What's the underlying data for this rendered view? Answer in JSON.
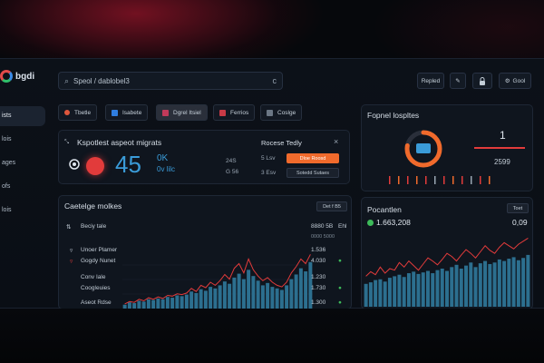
{
  "sidebar": {
    "logo_text": "bgdi",
    "items": [
      {
        "label": "ists"
      },
      {
        "label": "lois"
      },
      {
        "label": "ages"
      },
      {
        "label": "ofs"
      },
      {
        "label": "lois"
      }
    ]
  },
  "topbar": {
    "search_value": "Speol / dablobel3",
    "search_clear": "c",
    "btn_export": "Repled",
    "btn_edit_icon": "pencil-icon",
    "btn_lock_icon": "lock-icon",
    "btn_gool": "Gool"
  },
  "filters": [
    {
      "label": "Tbetle",
      "color": "#e0573d"
    },
    {
      "label": "Isabete",
      "color": "#2f7de0"
    },
    {
      "label": "Dgrel Itsiel",
      "color": "#c13a5a"
    },
    {
      "label": "Ferrios",
      "color": "#c83a46"
    },
    {
      "label": "Coslge",
      "color": "#6b7684"
    }
  ],
  "migrate_panel": {
    "title": "Kspotlest aspeot migrats",
    "big_value": "45",
    "unit_top": "0K",
    "unit_bottom": "0v lilc",
    "mid_top": "24S",
    "mid_bottom": "G 56",
    "right_title": "Rocese Tedly",
    "row1_label": "5 Lsv",
    "row1_button": "Dloe Roosd",
    "row2_label": "3 Esv",
    "row2_button": "Sotedd Sutaes",
    "close_glyph": "×",
    "collapse_glyph": "⤡"
  },
  "progress_panel": {
    "title": "Fopnel lospltes",
    "value_top": "1",
    "value_bottom": "2599",
    "ring_fraction": 0.78
  },
  "catalog_panel": {
    "title": "Caetelge molkes",
    "dropdown": "Det f B5",
    "header_label": "Beciy tale",
    "header_value": "8880 5B",
    "header_value2": "Ehl",
    "sub_value": "0000 5000",
    "rows": [
      {
        "label": "Unoer Plamer",
        "value": "1.536",
        "flag": ""
      },
      {
        "label": "Gogdy Nunet",
        "value": "4.030",
        "flag": "●"
      },
      {
        "label": "Conv Iale",
        "value": "1.230",
        "flag": ""
      },
      {
        "label": "Coogleuies",
        "value": "1.730",
        "flag": "●"
      },
      {
        "label": "Aseot Rdse",
        "value": "1.300",
        "flag": "●"
      }
    ],
    "chart_data": {
      "type": "bar",
      "values": [
        5,
        8,
        7,
        10,
        9,
        12,
        11,
        13,
        12,
        15,
        14,
        17,
        16,
        18,
        22,
        20,
        25,
        23,
        28,
        26,
        30,
        35,
        32,
        40,
        45,
        38,
        50,
        42,
        36,
        30,
        33,
        28,
        26,
        24,
        30,
        38,
        44,
        52,
        48,
        60
      ],
      "line": [
        6,
        9,
        8,
        12,
        10,
        14,
        12,
        15,
        13,
        17,
        16,
        19,
        18,
        20,
        26,
        22,
        30,
        27,
        34,
        30,
        36,
        44,
        38,
        52,
        58,
        46,
        64,
        50,
        42,
        36,
        40,
        34,
        30,
        28,
        34,
        46,
        54,
        64,
        58,
        70
      ],
      "ylim": [
        0,
        75
      ],
      "grid": true
    }
  },
  "population_panel": {
    "title": "Pocantlen",
    "button": "Toet",
    "value_left": "1.663,208",
    "value_right": "0,09",
    "chart_data": {
      "type": "bar",
      "values": [
        30,
        32,
        35,
        36,
        33,
        38,
        40,
        42,
        39,
        44,
        46,
        43,
        45,
        47,
        44,
        48,
        50,
        47,
        52,
        55,
        50,
        54,
        58,
        52,
        57,
        60,
        56,
        58,
        62,
        60,
        63,
        65,
        61,
        64,
        68
      ],
      "line": [
        40,
        46,
        42,
        52,
        44,
        50,
        48,
        58,
        52,
        60,
        54,
        48,
        56,
        64,
        60,
        55,
        62,
        70,
        66,
        60,
        68,
        75,
        70,
        64,
        72,
        80,
        74,
        70,
        78,
        84,
        80,
        76,
        82,
        86,
        90
      ],
      "ylim": [
        0,
        100
      ],
      "grid": false
    }
  },
  "colors": {
    "accent_red": "#e23b3b",
    "accent_orange": "#f06a2c",
    "accent_blue": "#3a9bd8",
    "bar_teal": "#2c6f8f",
    "green": "#3dbb5a"
  }
}
